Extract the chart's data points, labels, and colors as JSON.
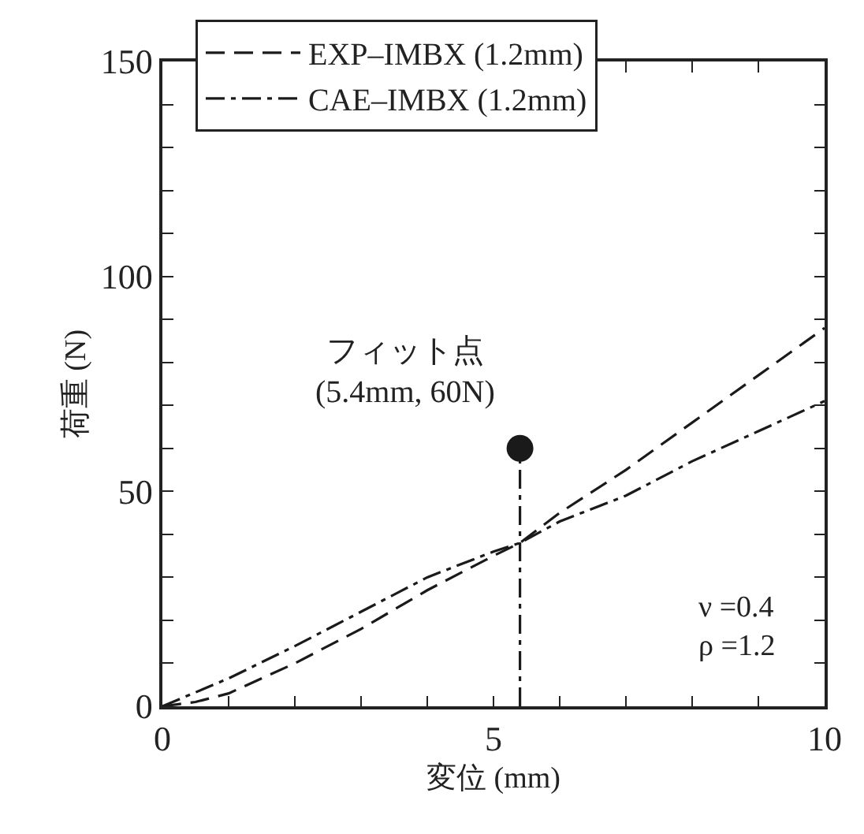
{
  "chart_data": {
    "type": "line",
    "xlabel": "変位 (mm)",
    "ylabel": "荷重 (N)",
    "xlim": [
      0,
      10
    ],
    "ylim": [
      0,
      150
    ],
    "xticks": [
      0,
      {
        "value": 1,
        "label": null
      },
      {
        "value": 2,
        "label": null
      },
      {
        "value": 3,
        "label": null
      },
      {
        "value": 4,
        "label": null
      },
      5,
      {
        "value": 6,
        "label": null
      },
      {
        "value": 7,
        "label": null
      },
      {
        "value": 8,
        "label": null
      },
      {
        "value": 9,
        "label": null
      },
      10
    ],
    "yticks": [
      0,
      {
        "value": 10,
        "label": null
      },
      {
        "value": 20,
        "label": null
      },
      {
        "value": 30,
        "label": null
      },
      {
        "value": 40,
        "label": null
      },
      50,
      {
        "value": 60,
        "label": null
      },
      {
        "value": 70,
        "label": null
      },
      {
        "value": 80,
        "label": null
      },
      {
        "value": 90,
        "label": null
      },
      100,
      {
        "value": 110,
        "label": null
      },
      {
        "value": 120,
        "label": null
      },
      {
        "value": 130,
        "label": null
      },
      {
        "value": 140,
        "label": null
      },
      150
    ],
    "grid": false,
    "legend": "top",
    "marker": "none",
    "series": [
      {
        "name": "EXP–IMBX (1.2mm)",
        "color": "#1a1a1a",
        "line_style": "dashed",
        "x": [
          0,
          0.5,
          1,
          2,
          3,
          4,
          5,
          5.4,
          6,
          7,
          8,
          9,
          10
        ],
        "values": [
          0,
          1,
          3,
          10,
          18,
          27,
          35,
          38,
          45,
          55,
          66,
          77,
          88
        ]
      },
      {
        "name": "CAE–IMBX (1.2mm)",
        "color": "#1a1a1a",
        "line_style": "dashdot",
        "x": [
          0,
          1,
          2,
          3,
          4,
          5,
          5.4,
          6,
          7,
          8,
          9,
          10
        ],
        "values": [
          0,
          6.5,
          14,
          22,
          30,
          36,
          38,
          43,
          49,
          57,
          64,
          71
        ]
      },
      {
        "type": "line",
        "color": "#1a1a1a",
        "line_style": "dashdot",
        "x": [
          5.4,
          5.4
        ],
        "values": [
          0,
          60
        ]
      },
      {
        "type": "scatter",
        "color": "#1a1a1a",
        "marker": "circle",
        "x": [
          5.4
        ],
        "values": [
          60
        ]
      }
    ],
    "annotations": [
      {
        "text": "フィット点\n(5.4mm, 60N)",
        "x": 5.4,
        "y": 60
      },
      "ν =0.4\nρ =1.2"
    ]
  }
}
